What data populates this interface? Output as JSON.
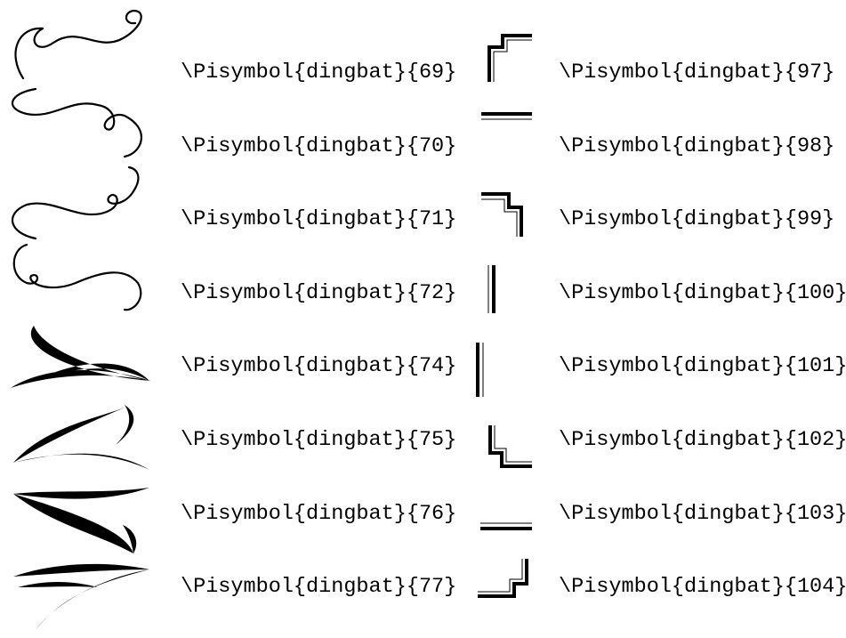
{
  "left_column": [
    "\\Pisymbol{dingbat}{69}",
    "\\Pisymbol{dingbat}{70}",
    "\\Pisymbol{dingbat}{71}",
    "\\Pisymbol{dingbat}{72}",
    "\\Pisymbol{dingbat}{74}",
    "\\Pisymbol{dingbat}{75}",
    "\\Pisymbol{dingbat}{76}",
    "\\Pisymbol{dingbat}{77}"
  ],
  "right_column": [
    "\\Pisymbol{dingbat}{97}",
    "\\Pisymbol{dingbat}{98}",
    "\\Pisymbol{dingbat}{99}",
    "\\Pisymbol{dingbat}{100}",
    "\\Pisymbol{dingbat}{101}",
    "\\Pisymbol{dingbat}{102}",
    "\\Pisymbol{dingbat}{103}",
    "\\Pisymbol{dingbat}{104}"
  ]
}
